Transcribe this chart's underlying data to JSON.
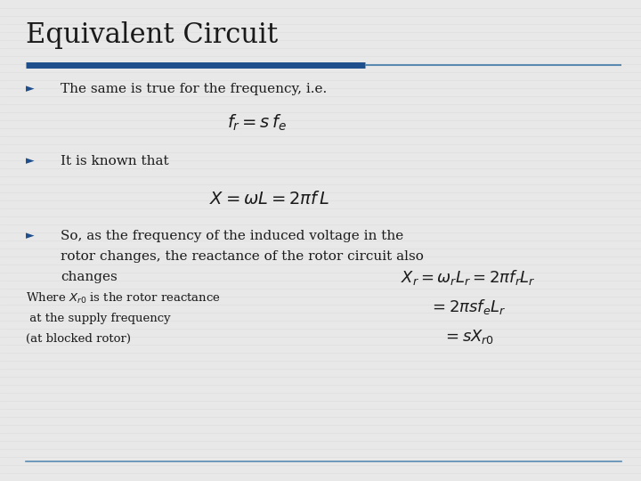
{
  "title": "Equivalent Circuit",
  "title_fontsize": 22,
  "title_color": "#1a1a1a",
  "bg_color": "#e8e8e8",
  "divider_color_left": "#1f4e8c",
  "divider_color_right": "#5a8ab0",
  "bullet_color": "#1f4e8c",
  "text_color": "#1a1a1a",
  "bullet1": "The same is true for the frequency, i.e.",
  "formula1": "$f_r = s\\, f_e$",
  "bullet2": "It is known that",
  "formula2": "$X = \\omega L = 2\\pi f\\, L$",
  "formula3a": "$X_r = \\omega_r L_r = 2\\pi f_r L_r$",
  "formula3b": "$= 2\\pi s f_e L_r$",
  "formula3c": "$= s X_{r0}$",
  "footnote1": "Where $X_{r0}$ is the rotor reactance",
  "footnote2": " at the supply frequency",
  "footnote3": "(at blocked rotor)",
  "body_fontsize": 11,
  "formula_fontsize": 13,
  "footnote_fontsize": 9.5
}
